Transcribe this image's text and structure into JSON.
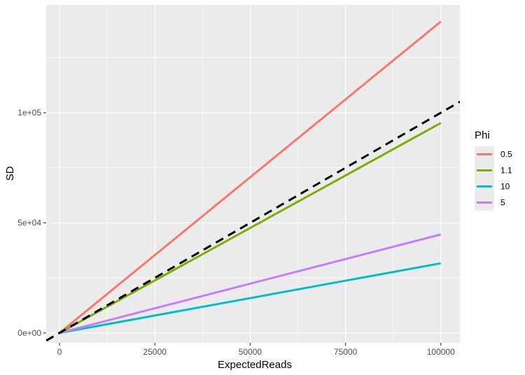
{
  "chart_data": {
    "type": "line",
    "title": "",
    "xlabel": "ExpectedReads",
    "ylabel": "SD",
    "xlim": [
      -3500,
      105000
    ],
    "ylim": [
      -4500,
      149000
    ],
    "x_ticks": [
      0,
      25000,
      50000,
      75000,
      100000
    ],
    "x_tick_labels": [
      "0",
      "25000",
      "50000",
      "75000",
      "100000"
    ],
    "y_ticks": [
      0,
      50000,
      100000
    ],
    "y_tick_labels": [
      "0e+00",
      "5e+04",
      "1e+05"
    ],
    "grid": true,
    "legend": {
      "title": "Phi",
      "position": "right"
    },
    "series": [
      {
        "name": "0.5",
        "color": "#F8766D",
        "x": [
          100,
          100000
        ],
        "y": [
          141,
          141421
        ]
      },
      {
        "name": "1.1",
        "color": "#7CAE00",
        "x": [
          100,
          100000
        ],
        "y": [
          95,
          95346
        ]
      },
      {
        "name": "10",
        "color": "#00BFC4",
        "x": [
          100,
          100000
        ],
        "y": [
          32,
          31623
        ]
      },
      {
        "name": "5",
        "color": "#C77CFF",
        "x": [
          100,
          100000
        ],
        "y": [
          45,
          44721
        ]
      }
    ],
    "reference_line": {
      "style": "dashed",
      "color": "#000000",
      "slope": 1,
      "intercept": 0
    }
  }
}
